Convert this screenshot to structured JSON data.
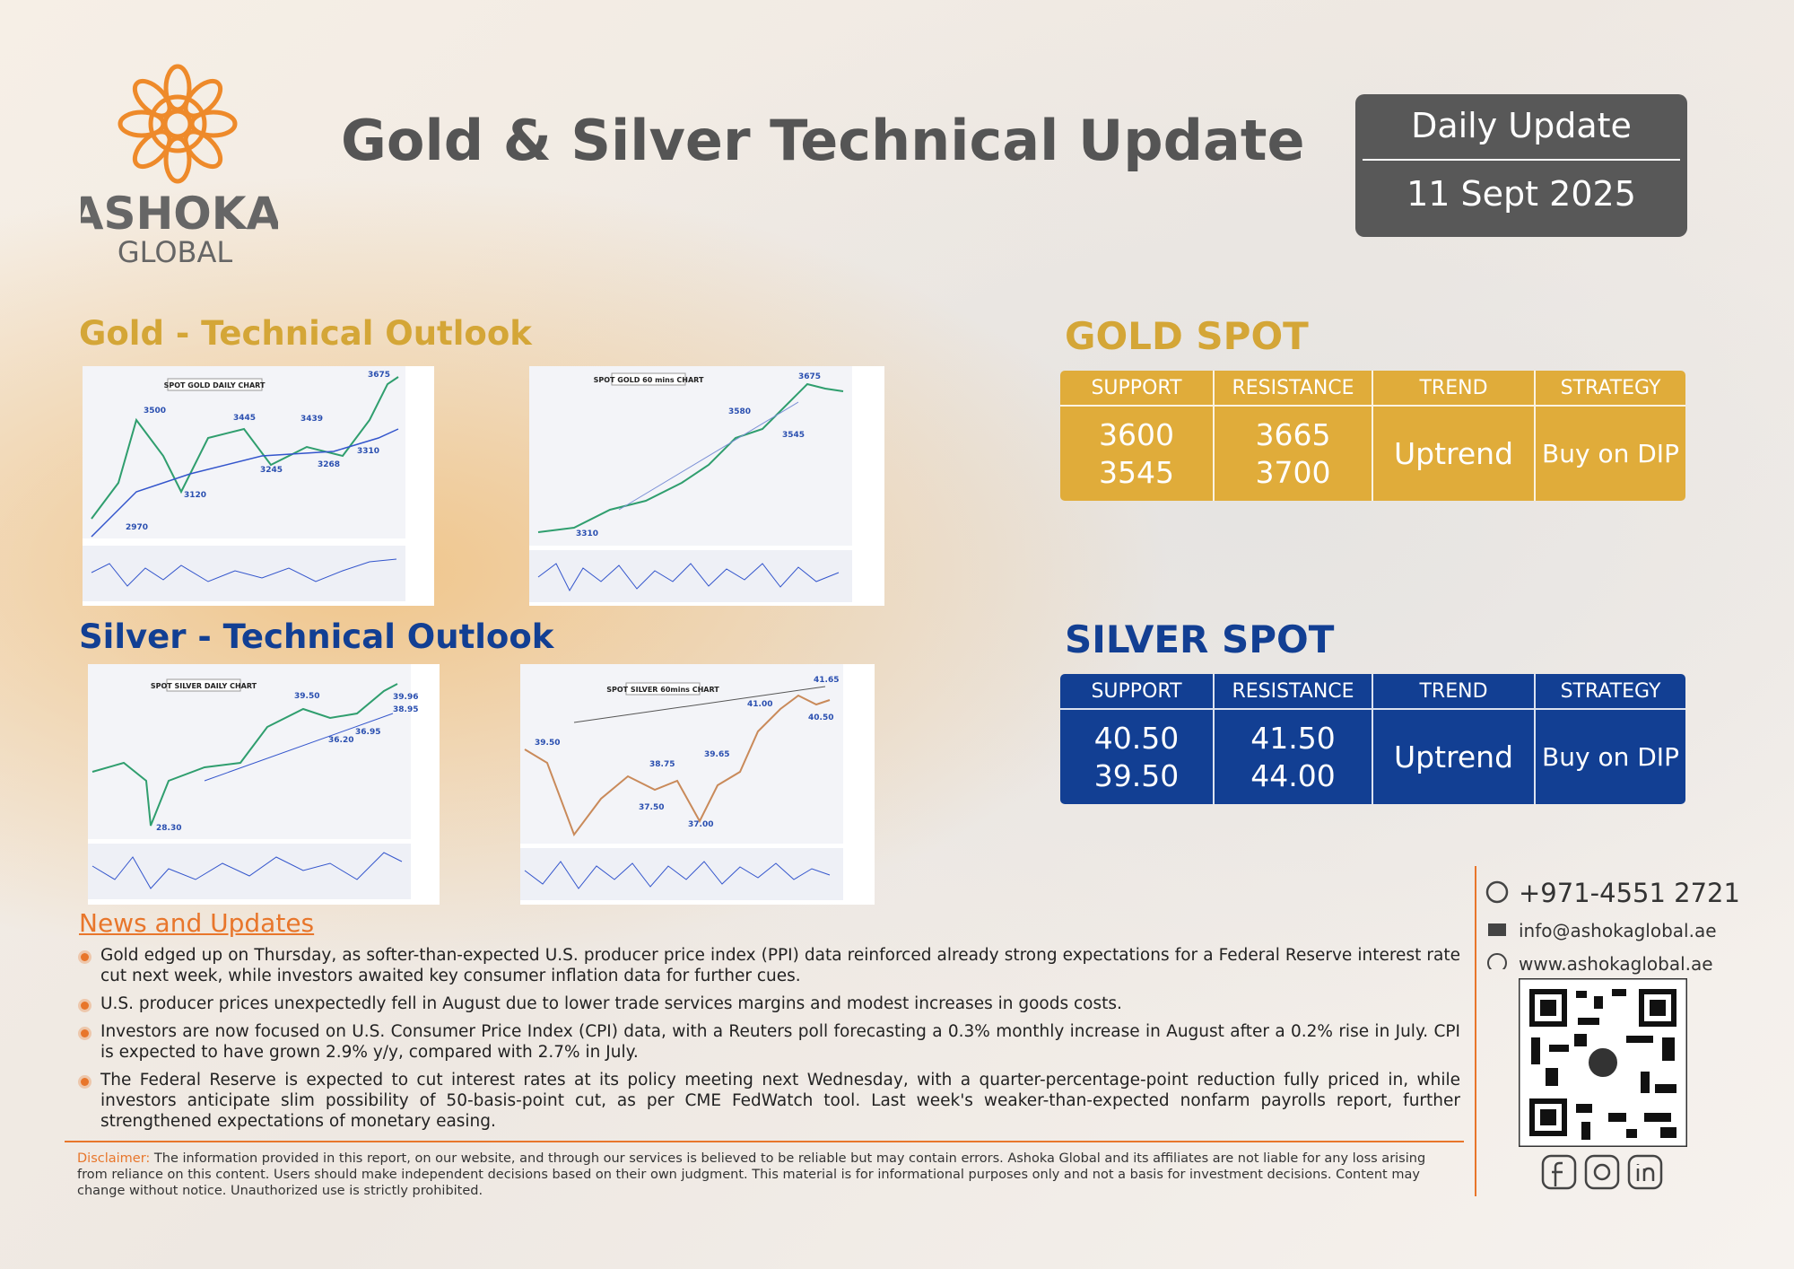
{
  "header": {
    "brand": "ASHOKA",
    "brand_sub": "GLOBAL",
    "title": "Gold & Silver Technical Update",
    "badge_label": "Daily Update",
    "date": "11 Sept 2025"
  },
  "gold_outlook": {
    "heading": "Gold - Technical Outlook",
    "daily_chart": {
      "title": "SPOT GOLD DAILY CHART",
      "levels": [
        "3675",
        "3500",
        "3445",
        "3439",
        "3245",
        "3268",
        "3310",
        "3120",
        "2970"
      ]
    },
    "hourly_chart": {
      "title": "SPOT GOLD 60 mins CHART",
      "levels": [
        "3675",
        "3580",
        "3545",
        "3310"
      ]
    }
  },
  "silver_outlook": {
    "heading": "Silver - Technical Outlook",
    "daily_chart": {
      "title": "SPOT SILVER DAILY CHART",
      "levels": [
        "39.50",
        "39.96",
        "38.95",
        "36.20",
        "36.95",
        "28.30"
      ]
    },
    "hourly_chart": {
      "title": "SPOT SILVER 60mins CHART",
      "levels": [
        "41.65",
        "41.00",
        "40.50",
        "39.50",
        "38.75",
        "39.65",
        "37.50",
        "37.00"
      ]
    }
  },
  "gold_spot": {
    "heading": "GOLD SPOT",
    "headers": [
      "SUPPORT",
      "RESISTANCE",
      "TREND",
      "STRATEGY"
    ],
    "support": [
      "3600",
      "3545"
    ],
    "resistance": [
      "3665",
      "3700"
    ],
    "trend": "Uptrend",
    "strategy": "Buy on DIP"
  },
  "silver_spot": {
    "heading": "SILVER SPOT",
    "headers": [
      "SUPPORT",
      "RESISTANCE",
      "TREND",
      "STRATEGY"
    ],
    "support": [
      "40.50",
      "39.50"
    ],
    "resistance": [
      "41.50",
      "44.00"
    ],
    "trend": "Uptrend",
    "strategy": "Buy on DIP"
  },
  "news": {
    "heading": "News and Updates",
    "items": [
      "Gold edged up on Thursday, as softer-than-expected U.S. producer price index (PPI) data reinforced already strong expectations for a Federal Reserve interest rate cut next week, while investors awaited key consumer inflation data for further cues.",
      "U.S. producer prices unexpectedly fell in August due to lower trade services margins and modest increases in goods costs.",
      "Investors are now focused on U.S. Consumer Price Index (CPI) data, with a Reuters poll forecasting a 0.3% monthly increase in August after a 0.2% rise in July. CPI is expected to have grown 2.9% y/y, compared with 2.7% in July.",
      "The Federal Reserve is expected to cut interest rates at its policy meeting next Wednesday, with a quarter-percentage-point reduction fully priced in, while investors anticipate slim possibility of 50-basis-point cut, as per CME FedWatch tool. Last week's weaker-than-expected nonfarm payrolls report, further strengthened expectations of monetary easing."
    ]
  },
  "contact": {
    "phone": "+971-4551 2721",
    "email": "info@ashokaglobal.ae",
    "website": "www.ashokaglobal.ae"
  },
  "disclaimer": {
    "label": "Disclaimer:",
    "text": "The information provided in this report, on our website, and through our services is believed to be reliable but may contain errors. Ashoka Global and its affiliates are not liable for any loss arising from reliance on this content. Users should make independent decisions based on their own judgment. This material is for informational purposes only and not a basis for investment decisions. Content may change without notice. Unauthorized use is strictly prohibited."
  }
}
